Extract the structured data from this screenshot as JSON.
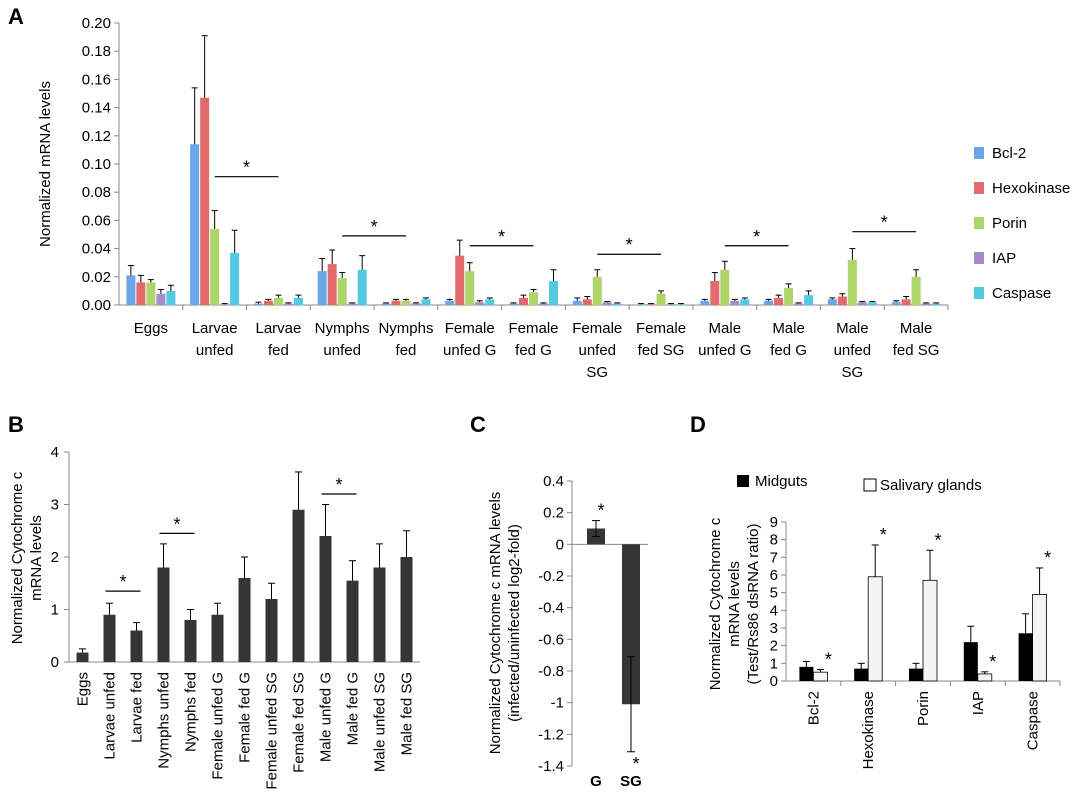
{
  "colors": {
    "Bcl-2": "#6aa6e8",
    "Hexokinase": "#e36a6a",
    "Porin": "#aed56a",
    "IAP": "#a58bc9",
    "Caspase": "#52cbe0",
    "dark_bar": "#353535",
    "midguts": "#000000",
    "salivary": "#f4f4f4"
  },
  "chart_data": [
    {
      "panel": "A",
      "type": "bar",
      "ylabel": "Normalized mRNA levels",
      "ylim": [
        0,
        0.2
      ],
      "yticks": [
        "0.00",
        "0.02",
        "0.04",
        "0.06",
        "0.08",
        "0.10",
        "0.12",
        "0.14",
        "0.16",
        "0.18",
        "0.20"
      ],
      "categories": [
        [
          "Eggs"
        ],
        [
          "Larvae",
          "unfed"
        ],
        [
          "Larvae",
          "fed"
        ],
        [
          "Nymphs",
          "unfed"
        ],
        [
          "Nymphs",
          "fed"
        ],
        [
          "Female",
          "unfed G"
        ],
        [
          "Female",
          "fed G"
        ],
        [
          "Female",
          "unfed",
          "SG"
        ],
        [
          "Female",
          "fed SG"
        ],
        [
          "Male",
          "unfed G"
        ],
        [
          "Male",
          "fed G"
        ],
        [
          "Male",
          "unfed",
          "SG"
        ],
        [
          "Male",
          "fed SG"
        ]
      ],
      "series": [
        {
          "name": "Bcl-2",
          "values": [
            0.021,
            0.114,
            0.001,
            0.024,
            0.001,
            0.003,
            0.001,
            0.003,
            0.0005,
            0.003,
            0.003,
            0.004,
            0.002
          ],
          "errors": [
            0.007,
            0.04,
            0.001,
            0.009,
            0.0005,
            0.001,
            0.0005,
            0.002,
            0.0005,
            0.001,
            0.001,
            0.001,
            0.001
          ]
        },
        {
          "name": "Hexokinase",
          "values": [
            0.016,
            0.147,
            0.003,
            0.029,
            0.003,
            0.035,
            0.005,
            0.004,
            0.0005,
            0.017,
            0.005,
            0.006,
            0.004
          ],
          "errors": [
            0.005,
            0.044,
            0.001,
            0.01,
            0.001,
            0.011,
            0.002,
            0.002,
            0.0005,
            0.006,
            0.002,
            0.002,
            0.002
          ]
        },
        {
          "name": "Porin",
          "values": [
            0.016,
            0.054,
            0.005,
            0.019,
            0.003,
            0.024,
            0.009,
            0.02,
            0.008,
            0.025,
            0.012,
            0.032,
            0.02
          ],
          "errors": [
            0.002,
            0.013,
            0.002,
            0.004,
            0.001,
            0.006,
            0.002,
            0.005,
            0.002,
            0.006,
            0.003,
            0.008,
            0.005
          ]
        },
        {
          "name": "IAP",
          "values": [
            0.008,
            0.0005,
            0.001,
            0.001,
            0.001,
            0.002,
            0.001,
            0.002,
            0.0005,
            0.003,
            0.001,
            0.002,
            0.001
          ],
          "errors": [
            0.003,
            0.0005,
            0.0005,
            0.0005,
            0.0005,
            0.001,
            0.0005,
            0.0005,
            0.0005,
            0.001,
            0.0005,
            0.0005,
            0.0005
          ]
        },
        {
          "name": "Caspase",
          "values": [
            0.01,
            0.037,
            0.005,
            0.025,
            0.004,
            0.004,
            0.017,
            0.001,
            0.0005,
            0.004,
            0.007,
            0.002,
            0.001
          ],
          "errors": [
            0.004,
            0.016,
            0.002,
            0.01,
            0.001,
            0.001,
            0.008,
            0.0005,
            0.0005,
            0.001,
            0.003,
            0.0005,
            0.0005
          ]
        }
      ],
      "significance": [
        {
          "cats": [
            1,
            2
          ],
          "star": "*",
          "y": 0.091
        },
        {
          "cats": [
            3,
            4
          ],
          "star": "*",
          "y": 0.049
        },
        {
          "cats": [
            5,
            6
          ],
          "star": "*",
          "y": 0.042
        },
        {
          "cats": [
            7,
            8
          ],
          "star": "*",
          "y": 0.036
        },
        {
          "cats": [
            9,
            10
          ],
          "star": "*",
          "y": 0.042
        },
        {
          "cats": [
            11,
            12
          ],
          "star": "*",
          "y": 0.052
        }
      ],
      "legend_position": "right"
    },
    {
      "panel": "B",
      "type": "bar",
      "ylabel": [
        "Normalized Cytochrome c",
        "mRNA levels"
      ],
      "ylim": [
        0,
        4
      ],
      "yticks": [
        "0",
        "1",
        "2",
        "3",
        "4"
      ],
      "categories": [
        "Eggs",
        "Larvae unfed",
        "Larvae fed",
        "Nymphs unfed",
        "Nymphs fed",
        "Female unfed G",
        "Female fed G",
        "Female unfed SG",
        "Female fed SG",
        "Male unfed G",
        "Male fed G",
        "Male unfed SG",
        "Male fed SG"
      ],
      "values": [
        0.18,
        0.9,
        0.6,
        1.8,
        0.8,
        0.9,
        1.6,
        1.2,
        2.9,
        2.4,
        1.55,
        1.8,
        2.0
      ],
      "errors": [
        0.07,
        0.22,
        0.15,
        0.45,
        0.2,
        0.22,
        0.4,
        0.3,
        0.72,
        0.6,
        0.38,
        0.45,
        0.5
      ],
      "significance": [
        {
          "cats": [
            1,
            2
          ],
          "star": "*",
          "y": 1.35
        },
        {
          "cats": [
            3,
            4
          ],
          "star": "*",
          "y": 2.45
        },
        {
          "cats": [
            9,
            10
          ],
          "star": "*",
          "y": 3.2
        }
      ]
    },
    {
      "panel": "C",
      "type": "bar",
      "ylabel": [
        "Normalized Cytochrome c mRNA levels",
        "(infected/uninfected log2-fold)"
      ],
      "ylim": [
        -1.4,
        0.4
      ],
      "yticks": [
        "0.4",
        "0.2",
        "0",
        "-0.2",
        "-0.4",
        "-0.6",
        "-0.8",
        "-1",
        "-1.2",
        "-1.4"
      ],
      "categories": [
        "G",
        "SG"
      ],
      "values": [
        0.1,
        -1.01
      ],
      "errors": [
        0.05,
        0.3
      ],
      "stars": [
        "*",
        "*"
      ]
    },
    {
      "panel": "D",
      "type": "bar",
      "ylabel": [
        "Normalized Cytochrome c",
        "mRNA levels",
        "(Test/Rs86 dsRNA ratio)"
      ],
      "ylim": [
        0,
        9
      ],
      "yticks": [
        "0",
        "1",
        "2",
        "3",
        "4",
        "5",
        "6",
        "7",
        "8",
        "9"
      ],
      "categories": [
        "Bcl-2",
        "Hexokinase",
        "Porin",
        "IAP",
        "Caspase"
      ],
      "series": [
        {
          "name": "Midguts",
          "values": [
            0.8,
            0.7,
            0.7,
            2.2,
            2.7
          ],
          "errors": [
            0.3,
            0.3,
            0.3,
            0.9,
            1.1
          ]
        },
        {
          "name": "Salivary glands",
          "values": [
            0.5,
            5.9,
            5.7,
            0.4,
            4.9
          ],
          "errors": [
            0.15,
            1.8,
            1.7,
            0.12,
            1.5
          ]
        }
      ],
      "stars": [
        "*",
        "*",
        "*",
        "*",
        "*"
      ],
      "legend_position": "top"
    }
  ]
}
